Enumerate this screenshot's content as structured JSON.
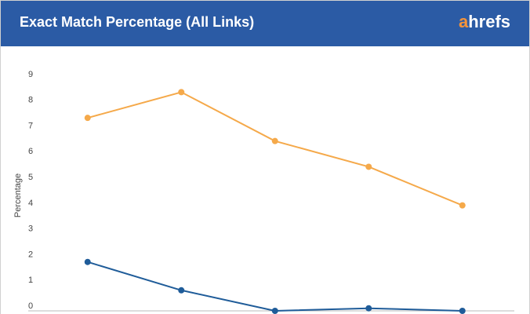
{
  "header": {
    "title": "Exact Match Percentage (All Links)",
    "logo": "ahrefs"
  },
  "chart_data": {
    "type": "line",
    "y_label": "Percentage",
    "categories": [
      null,
      null,
      null,
      null,
      null
    ],
    "series": [
      {
        "color": "#f5a94a",
        "values": [
          7.5,
          8.5,
          6.6,
          5.6,
          4.1
        ]
      },
      {
        "color": "#1f5c99",
        "values": [
          1.9,
          0.8,
          0,
          0.1,
          0
        ]
      }
    ],
    "ylim": [
      0,
      9
    ],
    "yticks": [
      0,
      1,
      2,
      3,
      4,
      5,
      6,
      7,
      8,
      9
    ],
    "grid": false
  }
}
